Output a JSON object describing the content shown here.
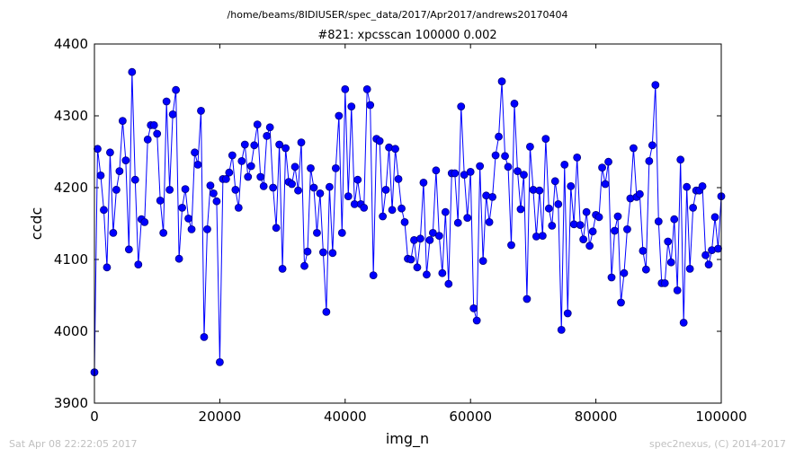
{
  "header": {
    "suptitle": "/home/beams/8IDIUSER/spec_data/2017/Apr2017/andrews20170404"
  },
  "footer": {
    "timestamp": "Sat Apr 08 22:22:05 2017",
    "credit": "spec2nexus, (C) 2014-2017"
  },
  "chart_data": {
    "type": "line",
    "title": "#821: xpcsscan 100000 0.002",
    "xlabel": "img_n",
    "ylabel": "ccdc",
    "xlim": [
      0,
      100000
    ],
    "ylim": [
      3900,
      4400
    ],
    "xticks": [
      0,
      20000,
      40000,
      60000,
      80000,
      100000
    ],
    "yticks": [
      3900,
      4000,
      4100,
      4200,
      4300,
      4400
    ],
    "grid": false,
    "colors": {
      "line": "#0000ff",
      "marker": "#0000ff",
      "marker_edge": "#000080"
    },
    "series": [
      {
        "x": [
          0,
          500,
          1000,
          1500,
          2000,
          2500,
          3000,
          3500,
          4000,
          4500,
          5000,
          5500,
          6000,
          6500,
          7000,
          7500,
          8000,
          8500,
          9000,
          9500,
          10000,
          10500,
          11000,
          11500,
          12000,
          12500,
          13000,
          13500,
          14000,
          14500,
          15000,
          15500,
          16000,
          16500,
          17000,
          17500,
          18000,
          18500,
          19000,
          19500,
          20000,
          20500,
          21000,
          21500,
          22000,
          22500,
          23000,
          23500,
          24000,
          24500,
          25000,
          25500,
          26000,
          26500,
          27000,
          27500,
          28000,
          28500,
          29000,
          29500,
          30000,
          30500,
          31000,
          31500,
          32000,
          32500,
          33000,
          33500,
          34000,
          34500,
          35000,
          35500,
          36000,
          36500,
          37000,
          37500,
          38000,
          38500,
          39000,
          39500,
          40000,
          40500,
          41000,
          41500,
          42000,
          42500,
          43000,
          43500,
          44000,
          44500,
          45000,
          45500,
          46000,
          46500,
          47000,
          47500,
          48000,
          48500,
          49000,
          49500,
          50000,
          50500,
          51000,
          51500,
          52000,
          52500,
          53000,
          53500,
          54000,
          54500,
          55000,
          55500,
          56000,
          56500,
          57000,
          57500,
          58000,
          58500,
          59000,
          59500,
          60000,
          60500,
          61000,
          61500,
          62000,
          62500,
          63000,
          63500,
          64000,
          64500,
          65000,
          65500,
          66000,
          66500,
          67000,
          67500,
          68000,
          68500,
          69000,
          69500,
          70000,
          70500,
          71000,
          71500,
          72000,
          72500,
          73000,
          73500,
          74000,
          74500,
          75000,
          75500,
          76000,
          76500,
          77000,
          77500,
          78000,
          78500,
          79000,
          79500,
          80000,
          80500,
          81000,
          81500,
          82000,
          82500,
          83000,
          83500,
          84000,
          84500,
          85000,
          85500,
          86000,
          86500,
          87000,
          87500,
          88000,
          88500,
          89000,
          89500,
          90000,
          90500,
          91000,
          91500,
          92000,
          92500,
          93000,
          93500,
          94000,
          94500,
          95000,
          95500,
          96000,
          96500,
          97000,
          97500,
          98000,
          98500,
          99000,
          99500,
          100000
        ],
        "y": [
          3943,
          4254,
          4217,
          4169,
          4089,
          4249,
          4137,
          4197,
          4223,
          4293,
          4238,
          4114,
          4361,
          4211,
          4093,
          4156,
          4152,
          4267,
          4287,
          4287,
          4275,
          4182,
          4137,
          4320,
          4197,
          4302,
          4336,
          4101,
          4172,
          4198,
          4157,
          4142,
          4249,
          4232,
          4307,
          3992,
          4142,
          4203,
          4192,
          4181,
          3957,
          4212,
          4212,
          4221,
          4245,
          4197,
          4172,
          4237,
          4260,
          4215,
          4230,
          4259,
          4288,
          4215,
          4202,
          4272,
          4284,
          4200,
          4144,
          4260,
          4087,
          4255,
          4208,
          4205,
          4229,
          4196,
          4263,
          4091,
          4111,
          4227,
          4200,
          4137,
          4192,
          4110,
          4027,
          4201,
          4109,
          4227,
          4300,
          4137,
          4337,
          4188,
          4313,
          4177,
          4211,
          4177,
          4172,
          4337,
          4315,
          4078,
          4268,
          4265,
          4160,
          4197,
          4256,
          4169,
          4254,
          4212,
          4171,
          4152,
          4101,
          4100,
          4127,
          4089,
          4129,
          4207,
          4079,
          4127,
          4137,
          4224,
          4133,
          4081,
          4166,
          4066,
          4220,
          4220,
          4151,
          4313,
          4218,
          4158,
          4222,
          4032,
          4015,
          4230,
          4098,
          4189,
          4152,
          4187,
          4245,
          4271,
          4348,
          4244,
          4229,
          4120,
          4317,
          4223,
          4170,
          4218,
          4045,
          4257,
          4197,
          4132,
          4196,
          4133,
          4268,
          4171,
          4147,
          4209,
          4177,
          4002,
          4232,
          4025,
          4202,
          4149,
          4242,
          4148,
          4128,
          4166,
          4119,
          4139,
          4162,
          4159,
          4228,
          4205,
          4236,
          4075,
          4140,
          4160,
          4040,
          4081,
          4142,
          4185,
          4255,
          4187,
          4191,
          4112,
          4086,
          4237,
          4259,
          4343,
          4153,
          4067,
          4067,
          4125,
          4096,
          4156,
          4057,
          4239,
          4012,
          4201,
          4087,
          4172,
          4196,
          4196,
          4202,
          4106,
          4093,
          4113,
          4159,
          4115,
          4188
        ]
      }
    ]
  }
}
